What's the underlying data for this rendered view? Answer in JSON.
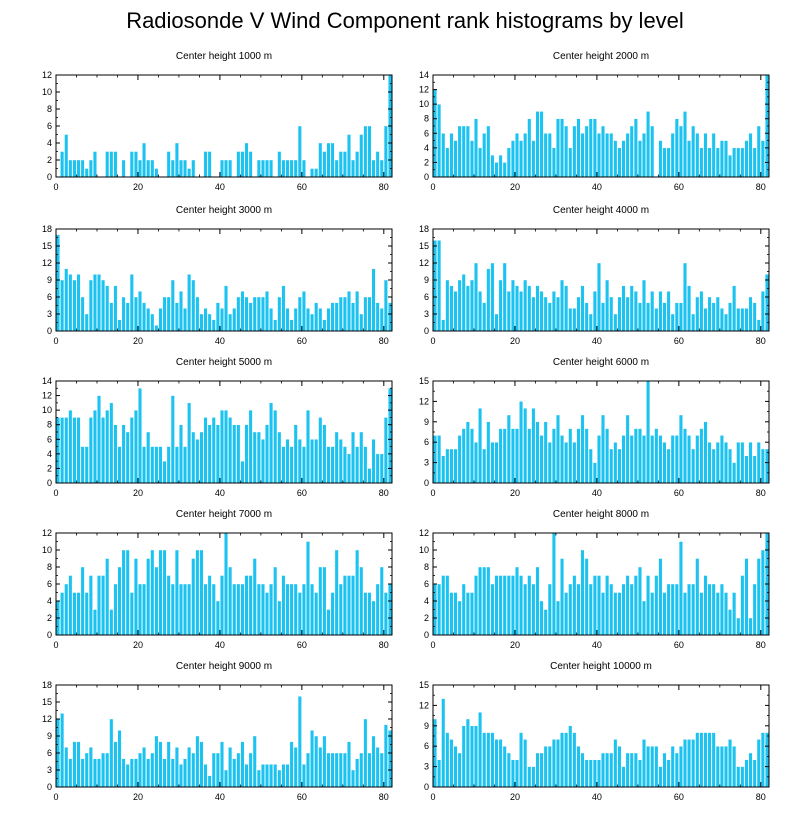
{
  "title": "Radiosonde V Wind Component rank histograms by level",
  "colors": {
    "bar": "#1cc3f0",
    "bar_edge": "#ffffff",
    "axis": "#000000"
  },
  "chart_data": [
    {
      "type": "bar",
      "title": "Center height 1000 m",
      "xlim": [
        0,
        82
      ],
      "xticks": [
        0,
        20,
        40,
        60,
        80
      ],
      "ylim": [
        0,
        12
      ],
      "yticks": [
        0,
        2,
        4,
        6,
        8,
        10,
        12
      ],
      "values": [
        0,
        3,
        5,
        2,
        2,
        2,
        2,
        1,
        2,
        3,
        0,
        0,
        3,
        3,
        3,
        0,
        2,
        0,
        3,
        3,
        2,
        4,
        2,
        2,
        1,
        0,
        0,
        3,
        2,
        4,
        2,
        2,
        1,
        2,
        0,
        0,
        3,
        3,
        0,
        0,
        2,
        2,
        2,
        0,
        3,
        3,
        4,
        3,
        0,
        2,
        2,
        2,
        2,
        0,
        3,
        2,
        2,
        2,
        2,
        6,
        2,
        0,
        1,
        1,
        4,
        3,
        4,
        4,
        2,
        3,
        3,
        5,
        2,
        3,
        5,
        6,
        6,
        2,
        3,
        2,
        6,
        12
      ]
    },
    {
      "type": "bar",
      "title": "Center height 2000 m",
      "xlim": [
        0,
        82
      ],
      "xticks": [
        0,
        20,
        40,
        60,
        80
      ],
      "ylim": [
        0,
        14
      ],
      "yticks": [
        0,
        2,
        4,
        6,
        8,
        10,
        12,
        14
      ],
      "values": [
        12,
        10,
        6,
        4,
        6,
        5,
        7,
        7,
        7,
        5,
        8,
        4,
        6,
        7,
        3,
        2,
        3,
        2,
        4,
        5,
        6,
        5,
        6,
        8,
        5,
        9,
        9,
        6,
        6,
        4,
        8,
        8,
        7,
        4,
        7,
        8,
        6,
        7,
        8,
        8,
        6,
        7,
        6,
        6,
        5,
        4,
        5,
        6,
        7,
        8,
        5,
        6,
        9,
        7,
        0,
        5,
        4,
        4,
        6,
        8,
        7,
        9,
        5,
        7,
        6,
        4,
        6,
        4,
        6,
        4,
        5,
        5,
        3,
        4,
        4,
        4,
        5,
        6,
        4,
        7,
        5,
        14
      ]
    },
    {
      "type": "bar",
      "title": "Center height 3000 m",
      "xlim": [
        0,
        82
      ],
      "xticks": [
        0,
        20,
        40,
        60,
        80
      ],
      "ylim": [
        0,
        18
      ],
      "yticks": [
        0,
        3,
        6,
        9,
        12,
        15,
        18
      ],
      "values": [
        17,
        9,
        11,
        10,
        9,
        10,
        6,
        3,
        9,
        10,
        10,
        9,
        8,
        5,
        8,
        2,
        6,
        5,
        10,
        6,
        7,
        5,
        4,
        3,
        1,
        4,
        6,
        6,
        9,
        5,
        7,
        4,
        10,
        9,
        6,
        3,
        4,
        3,
        2,
        5,
        4,
        8,
        3,
        4,
        6,
        7,
        6,
        5,
        6,
        6,
        6,
        7,
        4,
        2,
        6,
        8,
        4,
        2,
        4,
        6,
        7,
        4,
        3,
        5,
        4,
        2,
        4,
        5,
        5,
        6,
        6,
        7,
        5,
        7,
        3,
        6,
        6,
        11,
        5,
        4,
        9,
        5
      ]
    },
    {
      "type": "bar",
      "title": "Center height 4000 m",
      "xlim": [
        0,
        82
      ],
      "xticks": [
        0,
        20,
        40,
        60,
        80
      ],
      "ylim": [
        0,
        18
      ],
      "yticks": [
        0,
        3,
        6,
        9,
        12,
        15,
        18
      ],
      "values": [
        16,
        16,
        2,
        9,
        8,
        7,
        9,
        10,
        8,
        9,
        12,
        7,
        5,
        11,
        12,
        3,
        9,
        12,
        7,
        9,
        8,
        7,
        9,
        8,
        6,
        8,
        7,
        6,
        5,
        7,
        6,
        9,
        8,
        4,
        4,
        6,
        8,
        5,
        3,
        7,
        12,
        5,
        9,
        6,
        3,
        6,
        8,
        6,
        8,
        7,
        5,
        9,
        5,
        7,
        4,
        7,
        5,
        7,
        3,
        5,
        5,
        12,
        8,
        3,
        6,
        7,
        4,
        6,
        5,
        6,
        4,
        3,
        5,
        8,
        4,
        4,
        4,
        6,
        5,
        2,
        7,
        10
      ]
    },
    {
      "type": "bar",
      "title": "Center height 5000 m",
      "xlim": [
        0,
        82
      ],
      "xticks": [
        0,
        20,
        40,
        60,
        80
      ],
      "ylim": [
        0,
        14
      ],
      "yticks": [
        0,
        2,
        4,
        6,
        8,
        10,
        12,
        14
      ],
      "values": [
        9,
        9,
        9,
        10,
        9,
        9,
        5,
        5,
        9,
        10,
        12,
        9,
        10,
        11,
        8,
        5,
        8,
        7,
        9,
        10,
        13,
        5,
        7,
        5,
        5,
        5,
        3,
        5,
        12,
        5,
        8,
        5,
        11,
        7,
        6,
        7,
        9,
        8,
        9,
        8,
        10,
        10,
        9,
        8,
        8,
        3,
        8,
        10,
        7,
        7,
        6,
        8,
        11,
        10,
        7,
        5,
        6,
        5,
        8,
        6,
        5,
        10,
        6,
        6,
        9,
        8,
        5,
        5,
        7,
        6,
        5,
        4,
        7,
        5,
        7,
        5,
        2,
        6,
        4,
        4,
        9,
        13
      ]
    },
    {
      "type": "bar",
      "title": "Center height 6000 m",
      "xlim": [
        0,
        82
      ],
      "xticks": [
        0,
        20,
        40,
        60,
        80
      ],
      "ylim": [
        0,
        15
      ],
      "yticks": [
        0,
        3,
        6,
        9,
        12,
        15
      ],
      "values": [
        7,
        7,
        4,
        5,
        5,
        5,
        7,
        8,
        9,
        8,
        6,
        11,
        5,
        9,
        6,
        6,
        8,
        8,
        10,
        8,
        8,
        12,
        11,
        8,
        11,
        9,
        7,
        9,
        6,
        8,
        10,
        7,
        6,
        8,
        6,
        8,
        10,
        8,
        5,
        3,
        7,
        10,
        8,
        5,
        6,
        5,
        7,
        10,
        7,
        8,
        8,
        7,
        15,
        7,
        8,
        7,
        6,
        5,
        7,
        7,
        10,
        8,
        7,
        5,
        7,
        8,
        9,
        6,
        5,
        6,
        7,
        6,
        5,
        3,
        6,
        6,
        4,
        6,
        4,
        6,
        5,
        5
      ]
    },
    {
      "type": "bar",
      "title": "Center height 7000 m",
      "xlim": [
        0,
        82
      ],
      "xticks": [
        0,
        20,
        40,
        60,
        80
      ],
      "ylim": [
        0,
        12
      ],
      "yticks": [
        0,
        2,
        4,
        6,
        8,
        10,
        12
      ],
      "values": [
        4,
        5,
        6,
        7,
        5,
        5,
        8,
        5,
        7,
        3,
        7,
        7,
        9,
        3,
        6,
        8,
        10,
        10,
        5,
        9,
        6,
        6,
        9,
        10,
        8,
        10,
        10,
        7,
        6,
        10,
        6,
        6,
        6,
        9,
        10,
        10,
        6,
        7,
        6,
        4,
        7,
        12,
        8,
        6,
        6,
        6,
        7,
        7,
        9,
        6,
        6,
        5,
        6,
        8,
        4,
        7,
        6,
        6,
        6,
        5,
        6,
        11,
        6,
        5,
        8,
        8,
        3,
        5,
        10,
        6,
        7,
        7,
        7,
        10,
        8,
        5,
        5,
        4,
        6,
        8,
        5,
        6
      ]
    },
    {
      "type": "bar",
      "title": "Center height 8000 m",
      "xlim": [
        0,
        82
      ],
      "xticks": [
        0,
        20,
        40,
        60,
        80
      ],
      "ylim": [
        0,
        12
      ],
      "yticks": [
        0,
        2,
        4,
        6,
        8,
        10,
        12
      ],
      "values": [
        6,
        6,
        7,
        7,
        5,
        5,
        4,
        6,
        5,
        5,
        7,
        8,
        8,
        8,
        6,
        7,
        7,
        7,
        7,
        7,
        8,
        7,
        6,
        7,
        6,
        8,
        4,
        3,
        6,
        12,
        4,
        9,
        5,
        6,
        7,
        6,
        10,
        9,
        6,
        7,
        7,
        5,
        7,
        6,
        5,
        5,
        6,
        7,
        6,
        7,
        8,
        4,
        7,
        5,
        7,
        9,
        5,
        6,
        6,
        6,
        11,
        5,
        6,
        6,
        9,
        5,
        7,
        6,
        6,
        5,
        6,
        5,
        3,
        5,
        2,
        7,
        9,
        2,
        6,
        9,
        10,
        12
      ]
    },
    {
      "type": "bar",
      "title": "Center height 9000 m",
      "xlim": [
        0,
        82
      ],
      "xticks": [
        0,
        20,
        40,
        60,
        80
      ],
      "ylim": [
        0,
        18
      ],
      "yticks": [
        0,
        3,
        6,
        9,
        12,
        15,
        18
      ],
      "values": [
        12,
        13,
        7,
        5,
        8,
        8,
        5,
        6,
        7,
        5,
        5,
        6,
        6,
        12,
        8,
        10,
        5,
        4,
        5,
        5,
        6,
        7,
        5,
        6,
        9,
        8,
        5,
        8,
        5,
        7,
        4,
        5,
        7,
        6,
        9,
        8,
        4,
        2,
        6,
        6,
        8,
        3,
        7,
        5,
        6,
        8,
        4,
        6,
        9,
        3,
        4,
        4,
        4,
        4,
        3,
        4,
        4,
        8,
        7,
        16,
        4,
        6,
        10,
        9,
        7,
        9,
        6,
        6,
        6,
        6,
        6,
        8,
        3,
        5,
        6,
        12,
        6,
        9,
        7,
        6,
        11,
        10
      ]
    },
    {
      "type": "bar",
      "title": "Center height 10000 m",
      "xlim": [
        0,
        82
      ],
      "xticks": [
        0,
        20,
        40,
        60,
        80
      ],
      "ylim": [
        0,
        15
      ],
      "yticks": [
        0,
        3,
        6,
        9,
        12,
        15
      ],
      "values": [
        10,
        4,
        13,
        8,
        7,
        6,
        5,
        9,
        10,
        9,
        9,
        11,
        8,
        8,
        8,
        7,
        7,
        6,
        5,
        4,
        4,
        8,
        7,
        3,
        3,
        5,
        5,
        6,
        6,
        7,
        7,
        8,
        8,
        9,
        8,
        6,
        5,
        4,
        4,
        4,
        4,
        5,
        5,
        5,
        7,
        6,
        3,
        5,
        5,
        5,
        4,
        7,
        6,
        6,
        6,
        3,
        5,
        4,
        6,
        5,
        6,
        7,
        7,
        7,
        8,
        8,
        8,
        8,
        8,
        6,
        6,
        6,
        7,
        6,
        3,
        3,
        4,
        5,
        4,
        7,
        8,
        8
      ]
    }
  ]
}
